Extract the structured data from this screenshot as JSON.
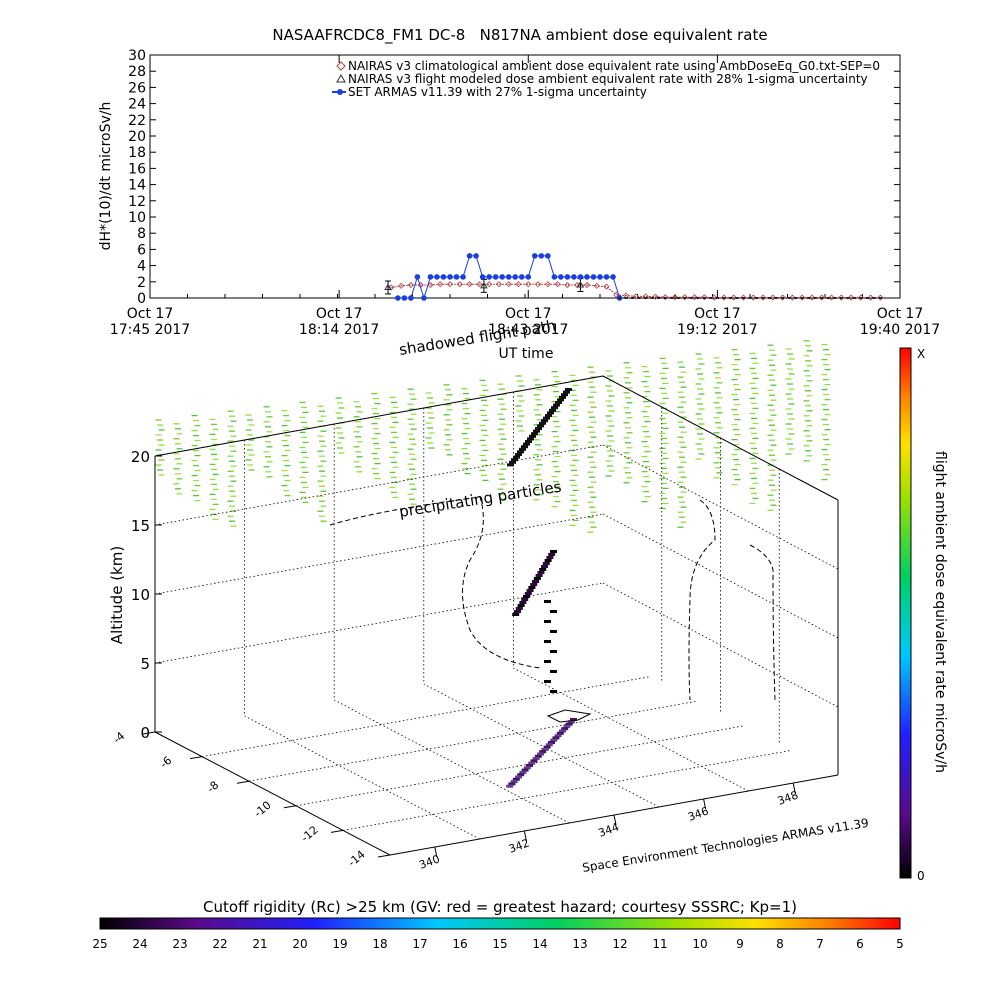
{
  "chart_data": [
    {
      "type": "line",
      "title": "NASAAFRCDC8_FM1 DC-8   N817NA ambient dose equivalent rate",
      "xlabel": "UT time",
      "ylabel": "dH*(10)/dt microSv/h",
      "ylim": [
        0,
        30
      ],
      "yticks": [
        0,
        2,
        4,
        6,
        8,
        10,
        12,
        14,
        16,
        18,
        20,
        22,
        24,
        26,
        28,
        30
      ],
      "xticks": [
        {
          "minutes": 0,
          "line1": "Oct 17",
          "line2": "17:45 2017"
        },
        {
          "minutes": 29,
          "line1": "Oct 17",
          "line2": "18:14 2017"
        },
        {
          "minutes": 58,
          "line1": "Oct 17",
          "line2": "18:43 2017"
        },
        {
          "minutes": 87,
          "line1": "Oct 17",
          "line2": "19:12 2017"
        },
        {
          "minutes": 115,
          "line1": "Oct 17",
          "line2": "19:40 2017"
        }
      ],
      "legend_position": "top-right",
      "series": [
        {
          "name": "NAIRAS v3 climatological ambient dose equivalent rate using AmbDoseEq_G0.txt-SEP=0",
          "marker": "diamond",
          "color": "#b04040",
          "x": [
            37,
            38.5,
            40,
            41.5,
            43,
            44.5,
            46,
            47.5,
            49,
            50.5,
            52,
            53.5,
            55,
            56.5,
            58,
            59.5,
            61,
            62.5,
            64,
            65.5,
            67,
            68.5,
            70,
            71.5,
            73,
            74.5,
            76,
            77.5,
            79,
            80.5,
            82,
            83.5,
            85,
            86.5,
            88,
            89.5,
            91,
            92.5,
            94,
            95.5,
            97,
            98.5,
            100,
            101.5,
            103,
            104.5,
            106,
            107.5,
            109,
            110.5,
            112
          ],
          "y": [
            1.3,
            1.5,
            1.6,
            1.6,
            1.6,
            1.7,
            1.7,
            1.7,
            1.7,
            1.7,
            1.7,
            1.7,
            1.7,
            1.7,
            1.7,
            1.7,
            1.7,
            1.7,
            1.6,
            1.6,
            1.6,
            1.5,
            1.4,
            0.4,
            0.3,
            0.2,
            0.2,
            0.15,
            0.1,
            0.1,
            0.1,
            0.1,
            0.1,
            0.05,
            0.05,
            0.05,
            0.05,
            0.05,
            0.05,
            0.05,
            0.05,
            0.05,
            0.05,
            0.05,
            0.05,
            0.05,
            0.05,
            0.05,
            0.05,
            0.05,
            0.05
          ]
        },
        {
          "name": "NAIRAS v3 flight modeled dose ambient equivalent rate with 28% 1-sigma uncertainty",
          "marker": "triangle",
          "color": "#303030",
          "x": [
            36.5,
            51.2,
            66
          ],
          "y": [
            1.3,
            1.5,
            1.6
          ],
          "error": [
            0.4,
            0.4,
            0.4
          ]
        },
        {
          "name": "SET ARMAS v11.39 with 27% 1-sigma uncertainty",
          "marker": "circle",
          "color": "#1a3fe0",
          "x": [
            38,
            39,
            40,
            41,
            42,
            43,
            44,
            45,
            46,
            47,
            48,
            49,
            50,
            51,
            52,
            53,
            54,
            55,
            56,
            57,
            58,
            59,
            60,
            61,
            62,
            63,
            64,
            65,
            66,
            67,
            68,
            69,
            70,
            71,
            72
          ],
          "y": [
            0,
            0,
            0,
            2.6,
            0,
            2.6,
            2.6,
            2.6,
            2.6,
            2.6,
            2.6,
            5.2,
            5.2,
            2.6,
            2.6,
            2.6,
            2.6,
            2.6,
            2.6,
            2.6,
            2.6,
            5.2,
            5.2,
            5.2,
            2.6,
            2.6,
            2.6,
            2.6,
            2.6,
            2.6,
            2.6,
            2.6,
            2.6,
            2.6,
            0
          ]
        }
      ]
    },
    {
      "type": "scatter",
      "subtype": "3d flight path",
      "zlabel": "Altitude (km)",
      "zticks": [
        0,
        5,
        10,
        15,
        20
      ],
      "lat_ticks": [
        "-14",
        "-12",
        "-10",
        "-8",
        "-6",
        "-4"
      ],
      "lon_ticks": [
        "340",
        "342",
        "344",
        "346",
        "348"
      ],
      "annotations": [
        "shadowed flight path",
        "precipitating particles",
        "Space Environment Technologies ARMAS v11.39"
      ]
    }
  ],
  "colorbar_vertical": {
    "label": "flight ambient dose equivalent rate microSv/h",
    "top_label": "X",
    "bottom_label": "0"
  },
  "colorbar_horizontal": {
    "title": "Cutoff rigidity (Rc) >25 km (GV: red = greatest hazard; courtesy SSSRC; Kp=1)",
    "ticks": [
      "25",
      "24",
      "23",
      "22",
      "21",
      "20",
      "19",
      "18",
      "17",
      "16",
      "15",
      "14",
      "13",
      "12",
      "11",
      "10",
      "9",
      "8",
      "7",
      "6",
      "5"
    ]
  }
}
